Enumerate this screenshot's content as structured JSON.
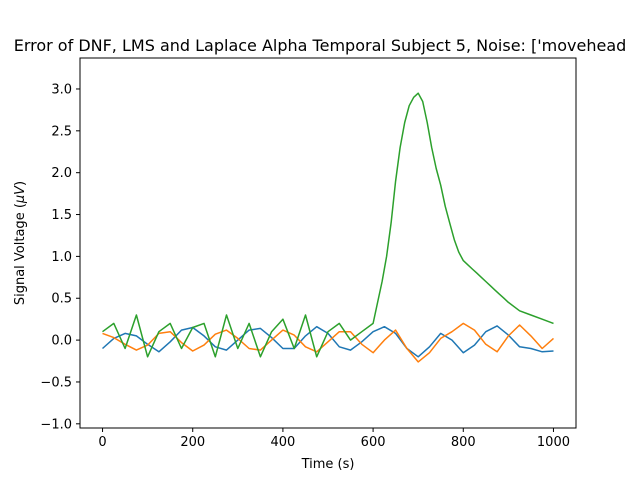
{
  "chart_data": {
    "type": "line",
    "title": "Error of DNF, LMS and Laplace Alpha Temporal Subject 5, Noise: ['movehead",
    "xlabel": "Time (s)",
    "ylabel_prefix": "Signal Voltage (",
    "ylabel_unit": "μV",
    "ylabel_suffix": ")",
    "xlim": [
      -50,
      1050
    ],
    "ylim": [
      -1.05,
      3.37
    ],
    "xticks": [
      0,
      200,
      400,
      600,
      800,
      1000
    ],
    "xtick_labels": [
      "0",
      "200",
      "400",
      "600",
      "800",
      "1000"
    ],
    "yticks": [
      -1.0,
      -0.5,
      0.0,
      0.5,
      1.0,
      1.5,
      2.0,
      2.5,
      3.0
    ],
    "ytick_labels": [
      "−1.0",
      "−0.5",
      "0.0",
      "0.5",
      "1.0",
      "1.5",
      "2.0",
      "2.5",
      "3.0"
    ],
    "grid": false,
    "colors": [
      "#1f77b4",
      "#ff7f0e",
      "#2ca02c"
    ],
    "series": [
      {
        "color": "#1f77b4",
        "x": [
          0,
          25,
          50,
          75,
          100,
          125,
          150,
          175,
          200,
          225,
          250,
          275,
          300,
          325,
          350,
          375,
          400,
          425,
          450,
          475,
          500,
          525,
          550,
          575,
          600,
          625,
          650,
          675,
          700,
          725,
          750,
          775,
          800,
          825,
          850,
          875,
          900,
          925,
          950,
          975,
          1000
        ],
        "y": [
          -0.1,
          0.02,
          0.08,
          0.05,
          -0.05,
          -0.14,
          -0.02,
          0.12,
          0.15,
          0.05,
          -0.08,
          -0.12,
          0.0,
          0.12,
          0.14,
          0.03,
          -0.1,
          -0.1,
          0.05,
          0.16,
          0.08,
          -0.08,
          -0.12,
          -0.02,
          0.1,
          0.16,
          0.08,
          -0.1,
          -0.2,
          -0.08,
          0.08,
          0.0,
          -0.15,
          -0.06,
          0.1,
          0.17,
          0.06,
          -0.08,
          -0.1,
          -0.14,
          -0.13
        ]
      },
      {
        "color": "#ff7f0e",
        "x": [
          0,
          25,
          50,
          75,
          100,
          125,
          150,
          175,
          200,
          225,
          250,
          275,
          300,
          325,
          350,
          375,
          400,
          425,
          450,
          475,
          500,
          525,
          550,
          575,
          600,
          625,
          650,
          675,
          700,
          725,
          750,
          775,
          800,
          825,
          850,
          875,
          900,
          925,
          950,
          975,
          1000
        ],
        "y": [
          0.08,
          0.03,
          -0.05,
          -0.12,
          -0.06,
          0.08,
          0.1,
          -0.03,
          -0.13,
          -0.06,
          0.07,
          0.12,
          0.02,
          -0.1,
          -0.12,
          0.0,
          0.12,
          0.06,
          -0.08,
          -0.14,
          -0.02,
          0.1,
          0.1,
          -0.05,
          -0.15,
          0.0,
          0.12,
          -0.1,
          -0.26,
          -0.15,
          0.02,
          0.1,
          0.2,
          0.12,
          -0.05,
          -0.14,
          0.05,
          0.18,
          0.05,
          -0.1,
          0.02
        ]
      },
      {
        "color": "#2ca02c",
        "x": [
          0,
          25,
          50,
          75,
          100,
          125,
          150,
          175,
          200,
          225,
          250,
          275,
          300,
          325,
          350,
          375,
          400,
          425,
          450,
          475,
          500,
          525,
          550,
          575,
          600,
          610,
          620,
          630,
          640,
          650,
          660,
          670,
          680,
          690,
          700,
          710,
          720,
          730,
          740,
          750,
          760,
          770,
          780,
          790,
          800,
          810,
          820,
          830,
          840,
          850,
          860,
          870,
          880,
          890,
          900,
          925,
          950,
          975,
          1000
        ],
        "y": [
          0.1,
          0.2,
          -0.1,
          0.3,
          -0.2,
          0.1,
          0.2,
          -0.1,
          0.15,
          0.2,
          -0.2,
          0.3,
          -0.1,
          0.2,
          -0.2,
          0.1,
          0.25,
          -0.1,
          0.3,
          -0.2,
          0.1,
          0.2,
          0.0,
          0.1,
          0.2,
          0.45,
          0.7,
          1.0,
          1.4,
          1.9,
          2.3,
          2.6,
          2.8,
          2.9,
          2.95,
          2.85,
          2.6,
          2.3,
          2.05,
          1.85,
          1.6,
          1.4,
          1.2,
          1.05,
          0.95,
          0.9,
          0.85,
          0.8,
          0.75,
          0.7,
          0.65,
          0.6,
          0.55,
          0.5,
          0.45,
          0.35,
          0.3,
          0.25,
          0.2
        ]
      }
    ]
  }
}
